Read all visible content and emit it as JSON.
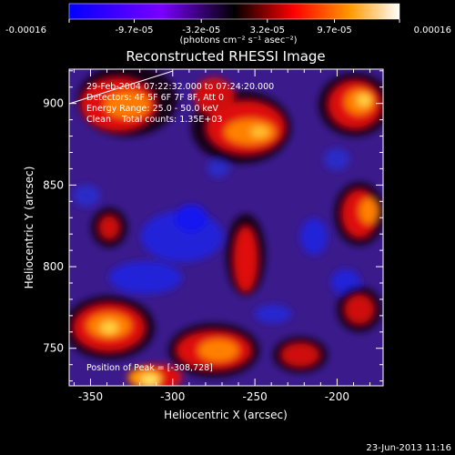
{
  "colorbar": {
    "tick_labels": [
      "-0.00016",
      "-9.7e-05",
      "-3.2e-05",
      "3.2e-05",
      "9.7e-05",
      "0.00016"
    ],
    "tick_values": [
      -0.00016,
      -9.7e-05,
      -3.2e-05,
      3.2e-05,
      9.7e-05,
      0.00016
    ],
    "range": [
      -0.00016,
      0.00016
    ],
    "units_text": "(photons cm⁻² s⁻¹ asec⁻²)",
    "colors": [
      "#0000ff",
      "#7a00ff",
      "#000000",
      "#ff0000",
      "#ff8c00",
      "#ffffff"
    ]
  },
  "chart_data": {
    "type": "heatmap",
    "title": "Reconstructed RHESSI Image",
    "xlabel": "Heliocentric X (arcsec)",
    "ylabel": "Heliocentric Y (arcsec)",
    "xlim": [
      -363,
      -172
    ],
    "ylim": [
      727,
      921
    ],
    "xticks": [
      -350,
      -300,
      -250,
      -200
    ],
    "yticks": [
      750,
      800,
      850,
      900
    ],
    "xtick_labels": [
      "-350",
      "-300",
      "-250",
      "-200"
    ],
    "ytick_labels": [
      "750",
      "800",
      "850",
      "900"
    ],
    "annotations": [
      "29-Feb-2004 07:22:32.000 to 07:24:20.000",
      "Detectors: 4F 5F 6F 7F 8F, Att 0",
      "Energy Range: 25.0 - 50.0 keV",
      "Clean    Total counts: 1.35E+03"
    ],
    "peak_label": "Position of Peak = [-308,728]",
    "peak_position": [
      -308,
      728
    ]
  },
  "footer": {
    "date": "23-Jun-2013 11:16"
  }
}
